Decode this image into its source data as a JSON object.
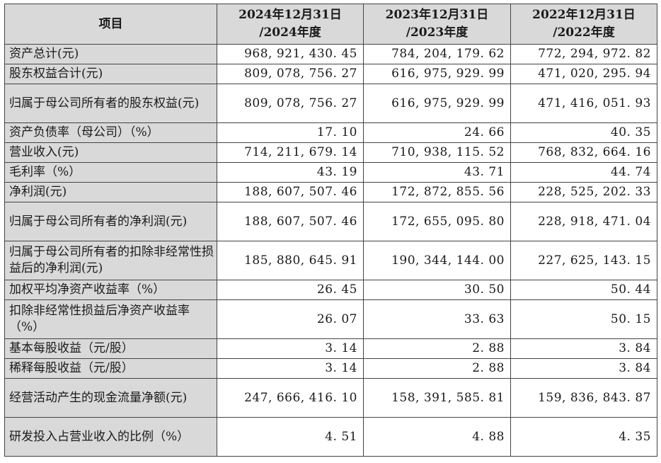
{
  "header": {
    "item": "项目",
    "columns": [
      {
        "line1": "2024年12月31日",
        "line2": "/2024年度"
      },
      {
        "line1": "2023年12月31日",
        "line2": "/2023年度"
      },
      {
        "line1": "2022年12月31日",
        "line2": "/2022年度"
      }
    ]
  },
  "rows": [
    {
      "label": "资产总计(元)",
      "values": [
        "968, 921, 430. 45",
        "784, 204, 179. 62",
        "772, 294, 972. 82"
      ]
    },
    {
      "label": "股东权益合计(元)",
      "values": [
        "809, 078, 756. 27",
        "616, 975, 929. 99",
        "471, 020, 295. 94"
      ]
    },
    {
      "label": "归属于母公司所有者的股东权益(元)",
      "values": [
        "809, 078, 756. 27",
        "616, 975, 929. 99",
        "471, 416, 051. 93"
      ]
    },
    {
      "label": "资产负债率（母公司）（%）",
      "values": [
        "17. 10",
        "24. 66",
        "40. 35"
      ]
    },
    {
      "label": "营业收入(元)",
      "values": [
        "714, 211, 679. 14",
        "710, 938, 115. 52",
        "768, 832, 664. 16"
      ]
    },
    {
      "label": "毛利率（%）",
      "values": [
        "43. 19",
        "43. 71",
        "44. 74"
      ]
    },
    {
      "label": "净利润(元)",
      "values": [
        "188, 607, 507. 46",
        "172, 872, 855. 56",
        "228, 525, 202. 33"
      ]
    },
    {
      "label": "归属于母公司所有者的净利润(元)",
      "values": [
        "188, 607, 507. 46",
        "172, 655, 095. 80",
        "228, 918, 471. 04"
      ]
    },
    {
      "label": "归属于母公司所有者的扣除非经常性损益后的净利润(元)",
      "values": [
        "185, 880, 645. 91",
        "190, 344, 144. 00",
        "227, 625, 143. 15"
      ]
    },
    {
      "label": "加权平均净资产收益率（%）",
      "values": [
        "26. 45",
        "30. 50",
        "50. 44"
      ]
    },
    {
      "label": "扣除非经常性损益后净资产收益率（%）",
      "values": [
        "26. 07",
        "33. 63",
        "50. 15"
      ]
    },
    {
      "label": "基本每股收益（元/股）",
      "values": [
        "3. 14",
        "2. 88",
        "3. 84"
      ]
    },
    {
      "label": "稀释每股收益（元/股）",
      "values": [
        "3. 14",
        "2. 88",
        "3. 84"
      ]
    },
    {
      "label": "经营活动产生的现金流量净额(元)",
      "values": [
        "247, 666, 416. 10",
        "158, 391, 585. 81",
        "159, 836, 843. 87"
      ]
    },
    {
      "label": "研发投入占营业收入的比例（%）",
      "values": [
        "4. 51",
        "4. 88",
        "4. 35"
      ]
    }
  ]
}
